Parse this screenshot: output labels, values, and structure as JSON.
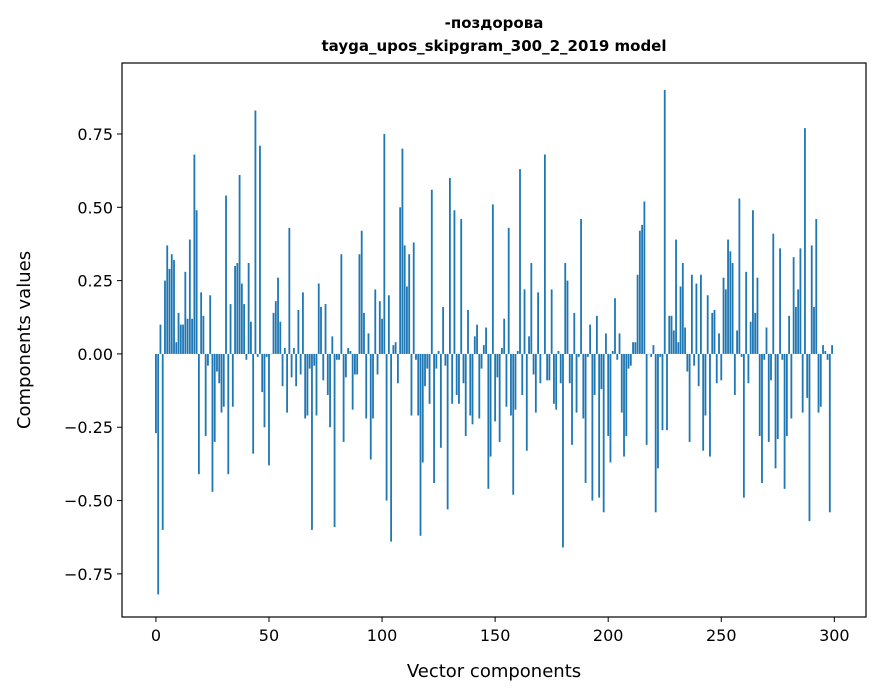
{
  "chart_data": {
    "type": "bar",
    "title_line1": "-поздорова",
    "title_line2": "tayga_upos_skipgram_300_2_2019 model",
    "xlabel": "Vector components",
    "ylabel": "Components values",
    "xlim": [
      -15,
      314
    ],
    "ylim": [
      -0.897,
      0.992
    ],
    "xticks": [
      0,
      50,
      100,
      150,
      200,
      250,
      300
    ],
    "xtick_labels": [
      "0",
      "50",
      "100",
      "150",
      "200",
      "250",
      "300"
    ],
    "yticks": [
      -0.75,
      -0.5,
      -0.25,
      0,
      0.25,
      0.5,
      0.75
    ],
    "ytick_labels": [
      "−0.75",
      "−0.50",
      "−0.25",
      "0.00",
      "0.25",
      "0.50",
      "0.75"
    ],
    "grid": false,
    "bar_color": "#1f77b4",
    "values": [
      -0.27,
      -0.82,
      0.1,
      -0.6,
      0.25,
      0.37,
      0.29,
      0.34,
      0.32,
      0.04,
      0.14,
      0.1,
      0.1,
      0.28,
      0.12,
      0.39,
      0.12,
      0.68,
      0.49,
      -0.41,
      0.21,
      0.13,
      -0.28,
      -0.04,
      0.2,
      -0.47,
      -0.3,
      -0.06,
      -0.1,
      -0.2,
      -0.18,
      0.54,
      -0.41,
      0.17,
      -0.18,
      0.3,
      0.31,
      0.61,
      0.24,
      0.17,
      -0.02,
      0.31,
      0.11,
      -0.34,
      0.83,
      -0.01,
      0.71,
      -0.13,
      -0.25,
      -0.01,
      -0.38,
      0.0,
      0.14,
      0.18,
      0.26,
      0.11,
      -0.11,
      0.02,
      -0.2,
      0.43,
      -0.08,
      0.02,
      -0.11,
      0.15,
      -0.07,
      0.21,
      -0.22,
      -0.21,
      -0.05,
      -0.6,
      -0.04,
      -0.21,
      0.24,
      0.16,
      -0.09,
      0.17,
      -0.14,
      -0.25,
      0.06,
      -0.59,
      -0.02,
      -0.02,
      0.34,
      -0.3,
      -0.08,
      0.02,
      0.01,
      -0.19,
      -0.07,
      -0.07,
      0.34,
      0.42,
      0.14,
      -0.22,
      0.07,
      -0.36,
      -0.22,
      0.22,
      -0.07,
      0.18,
      0.12,
      0.75,
      -0.5,
      0.2,
      -0.64,
      0.03,
      0.04,
      -0.1,
      0.5,
      0.7,
      0.37,
      0.23,
      0.34,
      -0.21,
      0.38,
      -0.02,
      -0.21,
      -0.62,
      -0.37,
      -0.11,
      -0.05,
      -0.17,
      0.56,
      -0.44,
      -0.05,
      0.01,
      -0.32,
      0.16,
      -0.04,
      -0.53,
      0.6,
      -0.17,
      0.49,
      -0.14,
      -0.17,
      0.46,
      -0.1,
      -0.28,
      0.15,
      -0.21,
      -0.24,
      0.06,
      0.1,
      -0.22,
      -0.05,
      0.03,
      0.09,
      -0.46,
      -0.35,
      0.51,
      -0.23,
      -0.08,
      -0.3,
      0.02,
      0.12,
      -0.18,
      0.43,
      -0.21,
      -0.48,
      -0.19,
      0.01,
      0.63,
      -0.14,
      0.22,
      -0.33,
      0.06,
      0.31,
      -0.07,
      -0.2,
      0.21,
      -0.1,
      0.0,
      0.68,
      -0.09,
      -0.09,
      0.22,
      -0.17,
      -0.19,
      0.01,
      -0.1,
      -0.66,
      0.31,
      0.25,
      -0.1,
      -0.31,
      0.14,
      -0.2,
      -0.01,
      0.46,
      -0.22,
      -0.44,
      -0.01,
      0.1,
      -0.5,
      -0.14,
      0.13,
      -0.49,
      -0.12,
      -0.54,
      0.07,
      -0.28,
      -0.37,
      0.01,
      0.19,
      -0.02,
      0.07,
      -0.2,
      -0.35,
      -0.28,
      -0.05,
      -0.04,
      0.04,
      0.04,
      0.27,
      0.42,
      0.44,
      0.52,
      -0.31,
      0.0,
      -0.01,
      0.03,
      -0.54,
      -0.39,
      -0.01,
      -0.26,
      0.9,
      -0.26,
      0.13,
      0.13,
      0.08,
      0.39,
      0.04,
      0.23,
      0.31,
      0.09,
      -0.06,
      -0.3,
      0.27,
      -0.04,
      0.24,
      -0.11,
      0.27,
      -0.33,
      -0.21,
      0.2,
      -0.35,
      0.14,
      0.15,
      -0.1,
      0.07,
      -0.09,
      0.26,
      0.22,
      0.39,
      0.35,
      0.31,
      -0.14,
      0.08,
      0.53,
      -0.01,
      -0.49,
      0.28,
      -0.1,
      0.11,
      0.49,
      0.14,
      0.26,
      -0.28,
      -0.44,
      -0.02,
      0.09,
      -0.3,
      -0.09,
      0.41,
      -0.39,
      -0.29,
      0.36,
      -0.02,
      -0.46,
      -0.28,
      0.13,
      -0.22,
      0.33,
      0.16,
      0.22,
      0.36,
      -0.2,
      0.77,
      -0.15,
      -0.57,
      0.37,
      0.16,
      0.46,
      -0.2,
      -0.18,
      0.03,
      0.01,
      -0.02,
      -0.54,
      0.03
    ]
  }
}
